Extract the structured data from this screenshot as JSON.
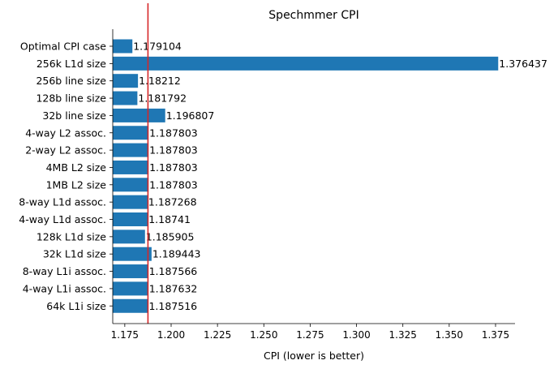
{
  "chart_data": {
    "type": "bar",
    "orientation": "horizontal",
    "title": "Spechmmer CPI",
    "xlabel": "CPI (lower is better)",
    "ylabel": "",
    "categories": [
      "Optimal CPI case",
      "256k L1d size",
      "256b line size",
      "128b line size",
      "32b line size",
      "4-way L2 assoc.",
      "2-way L2 assoc.",
      "4MB L2 size",
      "1MB L2 size",
      "8-way L1d assoc.",
      "4-way L1d assoc.",
      "128k L1d size",
      "32k L1d size",
      "8-way L1i assoc.",
      "4-way L1i assoc.",
      "64k L1i size"
    ],
    "values": [
      1.179104,
      1.376437,
      1.18212,
      1.181792,
      1.196807,
      1.187803,
      1.187803,
      1.187803,
      1.187803,
      1.187268,
      1.18741,
      1.185905,
      1.189443,
      1.187566,
      1.187632,
      1.187516
    ],
    "data_labels": [
      "1.179104",
      "1.376437",
      "1.18212",
      "1.181792",
      "1.196807",
      "1.187803",
      "1.187803",
      "1.187803",
      "1.187803",
      "1.187268",
      "1.18741",
      "1.185905",
      "1.189443",
      "1.187566",
      "1.187632",
      "1.187516"
    ],
    "xticks": [
      1.175,
      1.2,
      1.225,
      1.25,
      1.275,
      1.3,
      1.325,
      1.35,
      1.375
    ],
    "xtick_labels": [
      "1.175",
      "1.200",
      "1.225",
      "1.250",
      "1.275",
      "1.300",
      "1.325",
      "1.350",
      "1.375"
    ],
    "xlim": [
      1.1685,
      1.3855
    ],
    "reference_line": {
      "x": 1.1875,
      "color": "#d62728"
    },
    "bar_color": "#1f77b4",
    "grid": false,
    "legend": "none"
  }
}
